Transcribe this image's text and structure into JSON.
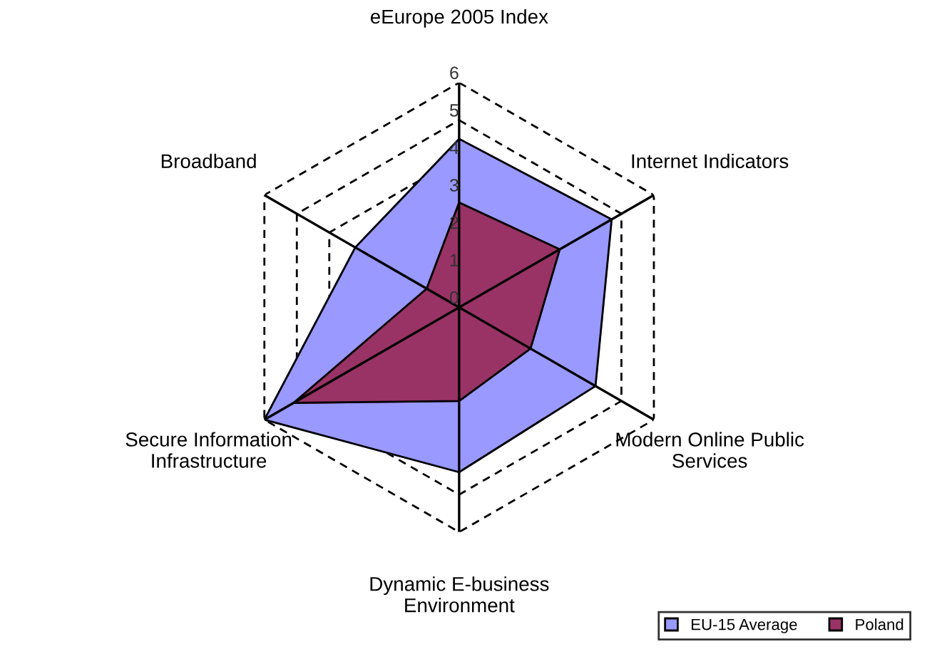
{
  "chart_data": {
    "type": "radar",
    "categories": [
      "eEurope 2005 Index",
      "Internet Indicators",
      "Modern Online Public\nServices",
      "Dynamic E-business\nEnvironment",
      "Secure Information\nInfrastructure",
      "Broadband"
    ],
    "series": [
      {
        "name": "EU-15 Average",
        "color": "#9999ff",
        "values": [
          4.5,
          4.7,
          4.2,
          4.4,
          6,
          3.2
        ]
      },
      {
        "name": "Poland",
        "color": "#993366",
        "values": [
          2.8,
          3.1,
          2.2,
          2.5,
          5.1,
          1.0
        ]
      }
    ],
    "ylim": [
      0,
      6
    ],
    "yticks": [
      0,
      1,
      2,
      3,
      4,
      5,
      6
    ],
    "grid": true,
    "line_style": "solid",
    "legend": "bottom right"
  }
}
